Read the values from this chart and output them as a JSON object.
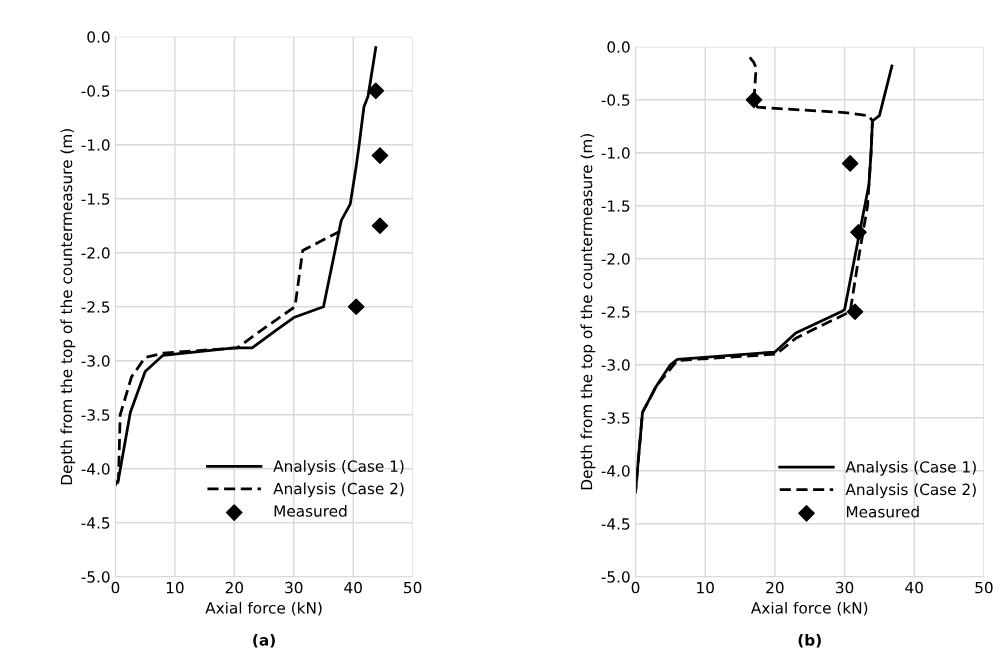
{
  "chart_data": [
    {
      "type": "line",
      "xlabel": "Axial force (kN)",
      "ylabel": "Depth from the top of the countermeasure (m)",
      "xlim": [
        0,
        50
      ],
      "xticks": [
        0,
        10,
        20,
        30,
        40,
        50
      ],
      "ylim": [
        -5,
        0
      ],
      "yticks": [
        {
          "value": -5,
          "label": "-5.0"
        },
        {
          "value": -4.5,
          "label": "-4.5"
        },
        {
          "value": -4,
          "label": "-4.0"
        },
        {
          "value": -3.5,
          "label": "-3.5"
        },
        {
          "value": -3,
          "label": "-3.0"
        },
        {
          "value": -2.5,
          "label": "-2.5"
        },
        {
          "value": -2,
          "label": "-2.0"
        },
        {
          "value": -1.5,
          "label": "-1.5"
        },
        {
          "value": -1,
          "label": "-1.0"
        },
        {
          "value": -0.5,
          "label": "-0.5"
        },
        {
          "value": 0,
          "label": "0.0"
        }
      ],
      "grid": true,
      "legend": "bottom right",
      "annotations": [
        "(a)"
      ],
      "series": [
        {
          "name": "Analysis (Case 1)",
          "color": "#000000",
          "line_style": "solid",
          "marker": "none",
          "x": [
            43.8,
            42.5,
            41.8,
            41,
            40.5,
            39.5,
            38,
            37.8,
            35,
            30,
            27,
            23,
            20,
            8,
            5,
            2.5,
            0.5,
            0
          ],
          "values": [
            -0.1,
            -0.55,
            -0.65,
            -1.0,
            -1.2,
            -1.55,
            -1.7,
            -1.75,
            -2.5,
            -2.6,
            -2.72,
            -2.88,
            -2.88,
            -2.95,
            -3.1,
            -3.48,
            -4.1,
            -4.15
          ]
        },
        {
          "name": "Analysis (Case 2)",
          "color": "#000000",
          "line_style": "dashed",
          "marker": "none",
          "x": [
            37.8,
            31.5,
            30.2,
            25,
            20.5,
            8,
            5,
            2.7,
            0.8,
            0.5,
            0.2
          ],
          "values": [
            -1.8,
            -1.98,
            -2.5,
            -2.7,
            -2.88,
            -2.93,
            -2.97,
            -3.15,
            -3.5,
            -4.1,
            -4.18
          ]
        },
        {
          "name": "Measured",
          "type": "scatter",
          "color": "#000000",
          "marker": "diamond",
          "x": [
            43.8,
            44.5,
            44.5,
            40.5
          ],
          "values": [
            -0.5,
            -1.1,
            -1.75,
            -2.5
          ]
        }
      ]
    },
    {
      "type": "line",
      "xlabel": "Axial force (kN)",
      "ylabel": "Depth from the top of the countermeasure (m)",
      "xlim": [
        0,
        50
      ],
      "xticks": [
        0,
        10,
        20,
        30,
        40,
        50
      ],
      "ylim": [
        -5,
        0
      ],
      "yticks": [
        {
          "value": -5,
          "label": "-5.0"
        },
        {
          "value": -4.5,
          "label": "-4.5"
        },
        {
          "value": -4,
          "label": "-4.0"
        },
        {
          "value": -3.5,
          "label": "-3.5"
        },
        {
          "value": -3,
          "label": "-3.0"
        },
        {
          "value": -2.5,
          "label": "-2.5"
        },
        {
          "value": -2,
          "label": "-2.0"
        },
        {
          "value": -1.5,
          "label": "-1.5"
        },
        {
          "value": -1,
          "label": "-1.0"
        },
        {
          "value": -0.5,
          "label": "-0.5"
        },
        {
          "value": 0,
          "label": "0.0"
        }
      ],
      "grid": true,
      "legend": "bottom right",
      "annotations": [
        "(b)"
      ],
      "series": [
        {
          "name": "Analysis (Case 1)",
          "color": "#000000",
          "line_style": "solid",
          "marker": "none",
          "x": [
            36.8,
            35,
            34,
            33.8,
            33.5,
            30,
            29.5,
            23,
            20,
            6,
            5,
            3,
            1,
            0
          ],
          "values": [
            -0.18,
            -0.65,
            -0.7,
            -1.0,
            -1.3,
            -2.48,
            -2.5,
            -2.7,
            -2.88,
            -2.95,
            -3.0,
            -3.2,
            -3.45,
            -4.2
          ]
        },
        {
          "name": "Analysis (Case 2)",
          "color": "#000000",
          "line_style": "dashed",
          "marker": "none",
          "x": [
            16.4,
            17,
            17.3,
            17,
            17.5,
            30,
            33.5,
            34,
            33.8,
            33.3,
            32,
            30.8,
            27,
            23,
            20.2,
            6,
            3,
            1,
            0
          ],
          "values": [
            -0.1,
            -0.15,
            -0.2,
            -0.5,
            -0.57,
            -0.62,
            -0.65,
            -0.7,
            -1.0,
            -1.5,
            -2.0,
            -2.5,
            -2.62,
            -2.75,
            -2.9,
            -2.96,
            -3.2,
            -3.45,
            -4.2
          ]
        },
        {
          "name": "Measured",
          "type": "scatter",
          "color": "#000000",
          "marker": "diamond",
          "x": [
            17,
            30.8,
            32,
            31.5
          ],
          "values": [
            -0.5,
            -1.1,
            -1.75,
            -2.5
          ]
        }
      ]
    }
  ]
}
